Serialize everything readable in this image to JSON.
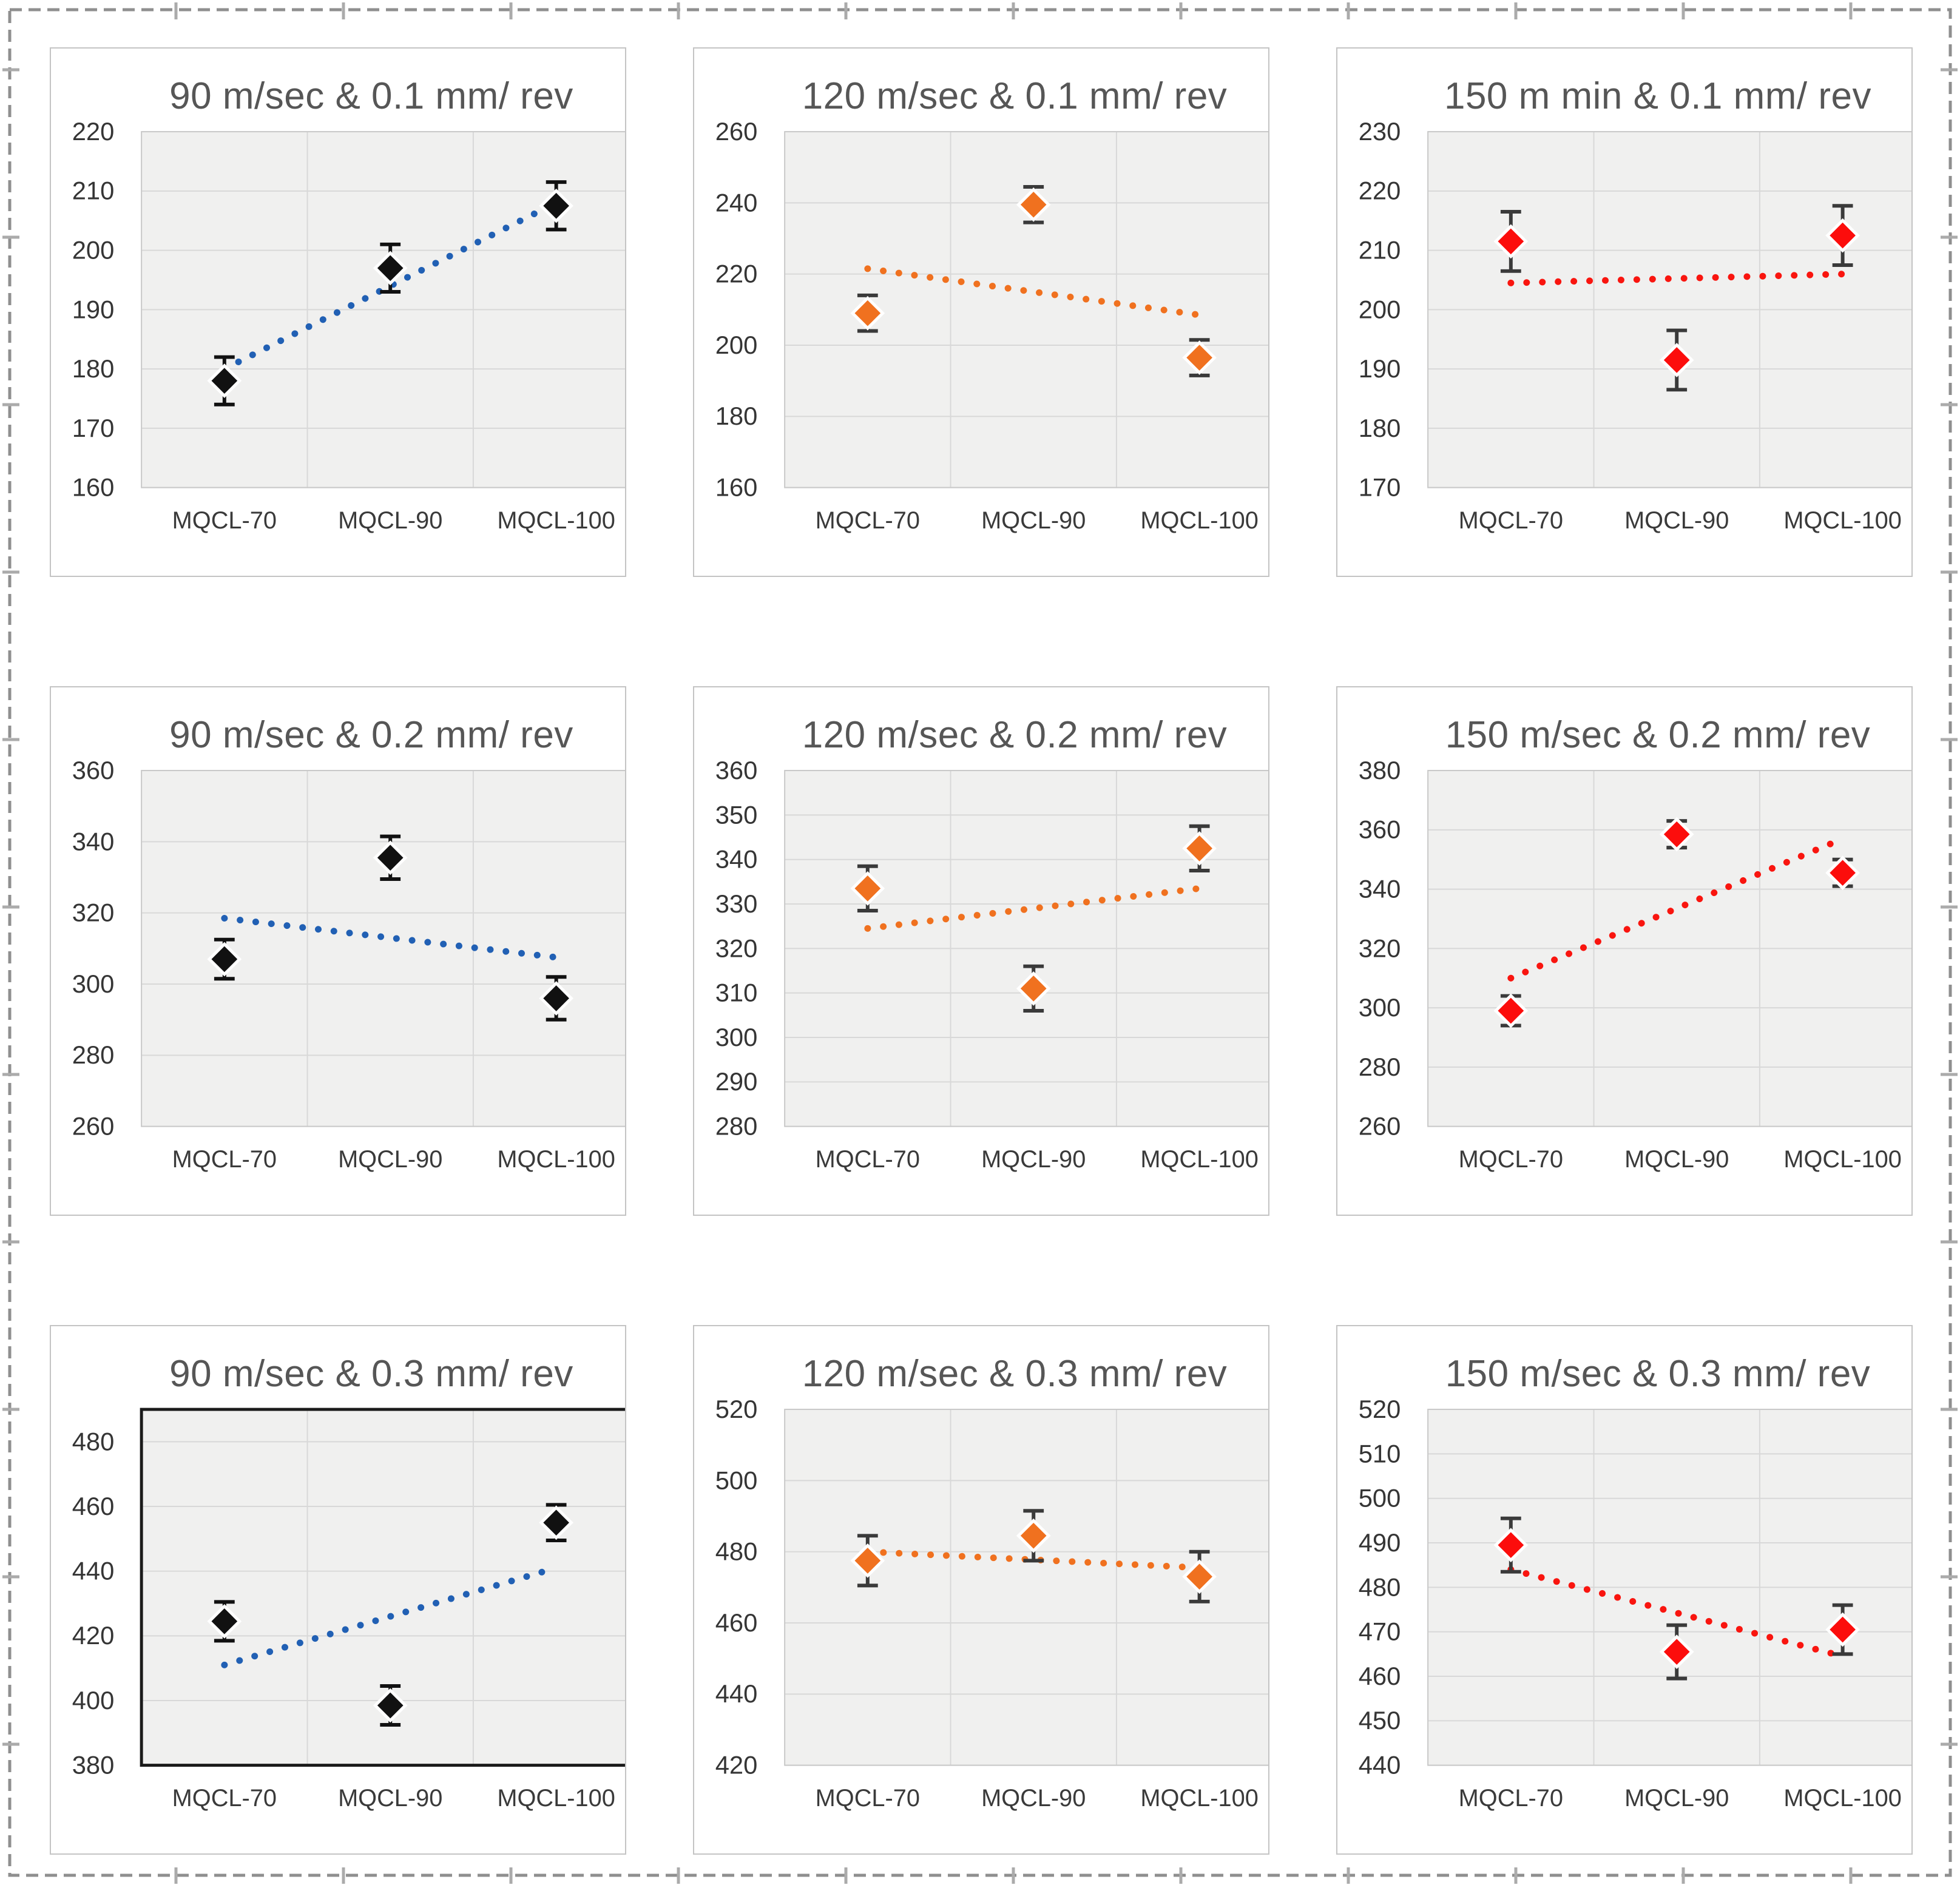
{
  "figure": {
    "border_color": "#8f8f8f",
    "border_tick_color": "#ababab",
    "panel_border_color": "#c4c4c4",
    "plot_bg_color": "#f0f0ef",
    "gridline_color": "#d8d8d8",
    "title_color": "#565656",
    "tick_label_color": "#353535"
  },
  "chart_data": [
    {
      "type": "scatter",
      "title": "90 m/sec & 0.1 mm/ rev",
      "categories": [
        "MQCL-70",
        "MQCL-90",
        "MQCL-100"
      ],
      "values": [
        178,
        197,
        207.5
      ],
      "errors": [
        4,
        4,
        4
      ],
      "trend": [
        180,
        208
      ],
      "ylim": [
        160,
        220
      ],
      "ytick_step": 10,
      "marker_color": "#111111",
      "error_color": "#111111",
      "trend_color": "#2160b4",
      "plot_border_color": "#c9c9c9",
      "plot_border_width": 2,
      "grid": "on",
      "legend": "none"
    },
    {
      "type": "scatter",
      "title": "120 m/sec & 0.1 mm/ rev",
      "categories": [
        "MQCL-70",
        "MQCL-90",
        "MQCL-100"
      ],
      "values": [
        209,
        239.5,
        196.5
      ],
      "errors": [
        5,
        5,
        5
      ],
      "trend": [
        221.5,
        208.5
      ],
      "ylim": [
        160,
        260
      ],
      "ytick_step": 20,
      "marker_color": "#f0711f",
      "error_color": "#3a3a3a",
      "trend_color": "#f0711f",
      "plot_border_color": "#c9c9c9",
      "plot_border_width": 2,
      "grid": "on",
      "legend": "none"
    },
    {
      "type": "scatter",
      "title": "150 m min & 0.1 mm/ rev",
      "categories": [
        "MQCL-70",
        "MQCL-90",
        "MQCL-100"
      ],
      "values": [
        211.5,
        191.5,
        212.5
      ],
      "errors": [
        5,
        5,
        5
      ],
      "trend": [
        204.5,
        206
      ],
      "ylim": [
        170,
        230
      ],
      "ytick_step": 10,
      "marker_color": "#fc0d0c",
      "error_color": "#3a3a3a",
      "trend_color": "#f9150f",
      "plot_border_color": "#c9c9c9",
      "plot_border_width": 2,
      "grid": "on",
      "legend": "none"
    },
    {
      "type": "scatter",
      "title": "90 m/sec & 0.2 mm/ rev",
      "categories": [
        "MQCL-70",
        "MQCL-90",
        "MQCL-100"
      ],
      "values": [
        307,
        335.5,
        296
      ],
      "errors": [
        5.5,
        6,
        6
      ],
      "trend": [
        318.5,
        307.5
      ],
      "ylim": [
        260,
        360
      ],
      "ytick_step": 20,
      "marker_color": "#111111",
      "error_color": "#111111",
      "trend_color": "#2160b4",
      "plot_border_color": "#c9c9c9",
      "plot_border_width": 2,
      "grid": "on",
      "legend": "none"
    },
    {
      "type": "scatter",
      "title": "120 m/sec & 0.2 mm/ rev",
      "categories": [
        "MQCL-70",
        "MQCL-90",
        "MQCL-100"
      ],
      "values": [
        333.5,
        311,
        342.5
      ],
      "errors": [
        5,
        5,
        5
      ],
      "trend": [
        324.5,
        333.5
      ],
      "ylim": [
        280,
        360
      ],
      "ytick_step": 10,
      "marker_color": "#f0711f",
      "error_color": "#3a3a3a",
      "trend_color": "#f0711f",
      "plot_border_color": "#c9c9c9",
      "plot_border_width": 2,
      "grid": "on",
      "legend": "none"
    },
    {
      "type": "scatter",
      "title": "150 m/sec & 0.2 mm/ rev",
      "categories": [
        "MQCL-70",
        "MQCL-90",
        "MQCL-100"
      ],
      "values": [
        299,
        358.5,
        345.5
      ],
      "errors": [
        5,
        4.5,
        4.5
      ],
      "trend": [
        310,
        357
      ],
      "ylim": [
        260,
        380
      ],
      "ytick_step": 20,
      "marker_color": "#fc0d0c",
      "error_color": "#3a3a3a",
      "trend_color": "#f9150f",
      "plot_border_color": "#c9c9c9",
      "plot_border_width": 2,
      "grid": "on",
      "legend": "none"
    },
    {
      "type": "scatter",
      "title": "90 m/sec & 0.3 mm/ rev",
      "categories": [
        "MQCL-70",
        "MQCL-90",
        "MQCL-100"
      ],
      "values": [
        424.5,
        398.5,
        455
      ],
      "errors": [
        6,
        6,
        5.5
      ],
      "trend": [
        411,
        441
      ],
      "ylim": [
        380,
        490
      ],
      "ytick_step": 20,
      "marker_color": "#111111",
      "error_color": "#111111",
      "trend_color": "#2160b4",
      "plot_border_color": "#1a1a1a",
      "plot_border_width": 5,
      "grid": "on",
      "legend": "none"
    },
    {
      "type": "scatter",
      "title": "120 m/sec & 0.3 mm/ rev",
      "categories": [
        "MQCL-70",
        "MQCL-90",
        "MQCL-100"
      ],
      "values": [
        477.5,
        484.5,
        473
      ],
      "errors": [
        7,
        7,
        7
      ],
      "trend": [
        480,
        475.5
      ],
      "ylim": [
        420,
        520
      ],
      "ytick_step": 20,
      "marker_color": "#f0711f",
      "error_color": "#3a3a3a",
      "trend_color": "#f0711f",
      "plot_border_color": "#c9c9c9",
      "plot_border_width": 2,
      "grid": "on",
      "legend": "none"
    },
    {
      "type": "scatter",
      "title": "150 m/sec & 0.3 mm/ rev",
      "categories": [
        "MQCL-70",
        "MQCL-90",
        "MQCL-100"
      ],
      "values": [
        489.5,
        465.5,
        470.5
      ],
      "errors": [
        6,
        6,
        5.5
      ],
      "trend": [
        484,
        464.5
      ],
      "ylim": [
        440,
        520
      ],
      "ytick_step": 10,
      "marker_color": "#fc0d0c",
      "error_color": "#3a3a3a",
      "trend_color": "#f9150f",
      "plot_border_color": "#c9c9c9",
      "plot_border_width": 2,
      "grid": "on",
      "legend": "none"
    }
  ]
}
